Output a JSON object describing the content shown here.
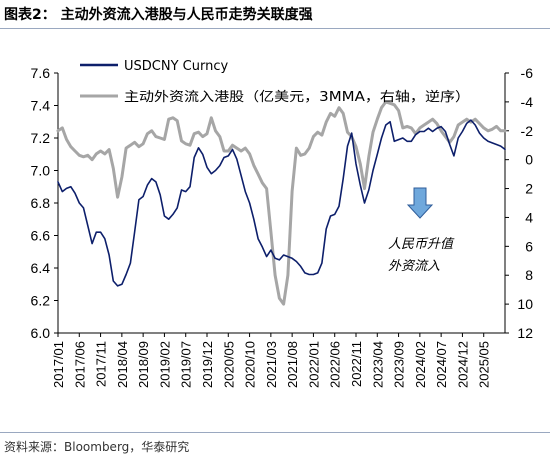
{
  "header": {
    "title": "图表2：   主动外资流入港股与人民币走势关联度强"
  },
  "footer": {
    "source": "资料来源：Bloomberg，华泰研究"
  },
  "colors": {
    "usdcny": "#0d1f6b",
    "flow": "#a6a6a6",
    "arrow": "#6fa8dc",
    "arrow_stroke": "#2f5d9a",
    "rule": "#9aa8c0"
  },
  "chart_data": {
    "type": "line",
    "title": "主动外资流入港股与人民币走势关联度强",
    "x_labels": [
      "2017/01",
      "2017/06",
      "2017/11",
      "2018/04",
      "2018/09",
      "2019/02",
      "2019/07",
      "2019/12",
      "2020/05",
      "2020/10",
      "2021/03",
      "2021/08",
      "2022/01",
      "2022/06",
      "2022/11",
      "2023/04",
      "2023/09",
      "2024/02",
      "2024/07",
      "2024/12",
      "2025/05"
    ],
    "x_range_months": [
      0,
      105
    ],
    "y_left": {
      "range": [
        6.0,
        7.6
      ],
      "ticks": [
        "6.0",
        "6.2",
        "6.4",
        "6.6",
        "6.8",
        "7.0",
        "7.2",
        "7.4",
        "7.6"
      ]
    },
    "y_right": {
      "range": [
        -6,
        12
      ],
      "inverted": true,
      "ticks": [
        "-6",
        "-4",
        "-2",
        "0",
        "2",
        "4",
        "6",
        "8",
        "10",
        "12"
      ]
    },
    "legend": {
      "placement": "top-left",
      "entries": [
        "USDCNY Curncy",
        "主动外资流入港股（亿美元，3MMA，右轴，逆序）"
      ]
    },
    "annotation": {
      "lines": [
        "人民币升值",
        "外资流入"
      ],
      "arrow": "down"
    },
    "series": [
      {
        "name": "USDCNY Curncy",
        "axis": "left",
        "points": [
          [
            0,
            6.93
          ],
          [
            1,
            6.87
          ],
          [
            2,
            6.89
          ],
          [
            3,
            6.9
          ],
          [
            4,
            6.86
          ],
          [
            5,
            6.8
          ],
          [
            6,
            6.77
          ],
          [
            7,
            6.66
          ],
          [
            8,
            6.55
          ],
          [
            9,
            6.62
          ],
          [
            10,
            6.62
          ],
          [
            11,
            6.58
          ],
          [
            12,
            6.48
          ],
          [
            13,
            6.32
          ],
          [
            14,
            6.29
          ],
          [
            15,
            6.3
          ],
          [
            16,
            6.36
          ],
          [
            17,
            6.43
          ],
          [
            18,
            6.62
          ],
          [
            19,
            6.82
          ],
          [
            20,
            6.84
          ],
          [
            21,
            6.91
          ],
          [
            22,
            6.95
          ],
          [
            23,
            6.93
          ],
          [
            24,
            6.85
          ],
          [
            25,
            6.72
          ],
          [
            26,
            6.7
          ],
          [
            27,
            6.73
          ],
          [
            28,
            6.77
          ],
          [
            29,
            6.88
          ],
          [
            30,
            6.87
          ],
          [
            31,
            6.9
          ],
          [
            32,
            7.08
          ],
          [
            33,
            7.14
          ],
          [
            34,
            7.1
          ],
          [
            35,
            7.02
          ],
          [
            36,
            6.98
          ],
          [
            37,
            7.0
          ],
          [
            38,
            7.03
          ],
          [
            39,
            7.08
          ],
          [
            40,
            7.09
          ],
          [
            41,
            7.13
          ],
          [
            42,
            7.07
          ],
          [
            43,
            6.97
          ],
          [
            44,
            6.87
          ],
          [
            45,
            6.8
          ],
          [
            46,
            6.7
          ],
          [
            47,
            6.58
          ],
          [
            48,
            6.53
          ],
          [
            49,
            6.47
          ],
          [
            50,
            6.51
          ],
          [
            51,
            6.46
          ],
          [
            52,
            6.45
          ],
          [
            53,
            6.48
          ],
          [
            54,
            6.47
          ],
          [
            55,
            6.46
          ],
          [
            56,
            6.44
          ],
          [
            57,
            6.41
          ],
          [
            58,
            6.37
          ],
          [
            59,
            6.36
          ],
          [
            60,
            6.36
          ],
          [
            61,
            6.37
          ],
          [
            62,
            6.43
          ],
          [
            63,
            6.64
          ],
          [
            64,
            6.72
          ],
          [
            65,
            6.73
          ],
          [
            66,
            6.78
          ],
          [
            67,
            6.95
          ],
          [
            68,
            7.15
          ],
          [
            69,
            7.23
          ],
          [
            70,
            7.04
          ],
          [
            71,
            6.91
          ],
          [
            72,
            6.8
          ],
          [
            73,
            6.88
          ],
          [
            74,
            7.0
          ],
          [
            75,
            7.1
          ],
          [
            76,
            7.2
          ],
          [
            77,
            7.28
          ],
          [
            78,
            7.3
          ],
          [
            79,
            7.18
          ],
          [
            80,
            7.19
          ],
          [
            81,
            7.2
          ],
          [
            82,
            7.18
          ],
          [
            83,
            7.18
          ],
          [
            84,
            7.22
          ],
          [
            85,
            7.24
          ],
          [
            86,
            7.24
          ],
          [
            87,
            7.26
          ],
          [
            88,
            7.24
          ],
          [
            89,
            7.26
          ],
          [
            90,
            7.27
          ],
          [
            91,
            7.24
          ],
          [
            92,
            7.16
          ],
          [
            93,
            7.09
          ],
          [
            94,
            7.2
          ],
          [
            95,
            7.24
          ],
          [
            96,
            7.29
          ],
          [
            97,
            7.31
          ],
          [
            98,
            7.28
          ],
          [
            99,
            7.23
          ],
          [
            100,
            7.2
          ],
          [
            101,
            7.18
          ],
          [
            102,
            7.17
          ],
          [
            103,
            7.16
          ],
          [
            104,
            7.15
          ],
          [
            105,
            7.13
          ]
        ]
      },
      {
        "name": "主动外资流入港股（亿美元，3MMA，右轴，逆序）",
        "axis": "right",
        "points": [
          [
            0,
            -2.0
          ],
          [
            1,
            -2.2
          ],
          [
            2,
            -1.4
          ],
          [
            3,
            -0.9
          ],
          [
            4,
            -0.6
          ],
          [
            5,
            -0.3
          ],
          [
            6,
            -0.2
          ],
          [
            7,
            -0.3
          ],
          [
            8,
            0.0
          ],
          [
            9,
            -0.4
          ],
          [
            10,
            -0.6
          ],
          [
            11,
            -0.4
          ],
          [
            12,
            -0.7
          ],
          [
            13,
            0.6
          ],
          [
            14,
            2.6
          ],
          [
            15,
            1.2
          ],
          [
            16,
            -0.8
          ],
          [
            17,
            -1.0
          ],
          [
            18,
            -1.2
          ],
          [
            19,
            -0.9
          ],
          [
            20,
            -1.1
          ],
          [
            21,
            -1.8
          ],
          [
            22,
            -2.0
          ],
          [
            23,
            -1.6
          ],
          [
            24,
            -1.5
          ],
          [
            25,
            -1.4
          ],
          [
            26,
            -2.8
          ],
          [
            27,
            -2.9
          ],
          [
            28,
            -2.7
          ],
          [
            29,
            -1.3
          ],
          [
            30,
            -1.1
          ],
          [
            31,
            -1.0
          ],
          [
            32,
            -1.8
          ],
          [
            33,
            -1.9
          ],
          [
            34,
            -1.6
          ],
          [
            35,
            -1.8
          ],
          [
            36,
            -2.9
          ],
          [
            37,
            -2.0
          ],
          [
            38,
            -1.6
          ],
          [
            39,
            -0.6
          ],
          [
            40,
            -0.6
          ],
          [
            41,
            -1.0
          ],
          [
            42,
            -0.8
          ],
          [
            43,
            -0.6
          ],
          [
            44,
            -0.8
          ],
          [
            45,
            -0.4
          ],
          [
            46,
            0.4
          ],
          [
            47,
            1.0
          ],
          [
            48,
            1.6
          ],
          [
            49,
            2.0
          ],
          [
            50,
            5.0
          ],
          [
            51,
            8.0
          ],
          [
            52,
            9.6
          ],
          [
            53,
            10.0
          ],
          [
            54,
            8.0
          ],
          [
            55,
            2.2
          ],
          [
            56,
            -0.8
          ],
          [
            57,
            -0.3
          ],
          [
            58,
            -0.4
          ],
          [
            59,
            -0.8
          ],
          [
            60,
            -1.6
          ],
          [
            61,
            -1.9
          ],
          [
            62,
            -1.7
          ],
          [
            63,
            -2.6
          ],
          [
            64,
            -3.2
          ],
          [
            65,
            -3.0
          ],
          [
            66,
            -3.6
          ],
          [
            67,
            -3.2
          ],
          [
            68,
            -1.9
          ],
          [
            69,
            -1.6
          ],
          [
            70,
            -0.9
          ],
          [
            71,
            0.3
          ],
          [
            72,
            2.0
          ],
          [
            73,
            -0.2
          ],
          [
            74,
            -1.9
          ],
          [
            75,
            -2.8
          ],
          [
            76,
            -3.6
          ],
          [
            77,
            -4.0
          ],
          [
            78,
            -3.9
          ],
          [
            79,
            -3.8
          ],
          [
            80,
            -3.4
          ],
          [
            81,
            -2.2
          ],
          [
            82,
            -2.3
          ],
          [
            83,
            -2.2
          ],
          [
            84,
            -1.8
          ],
          [
            85,
            -2.2
          ],
          [
            86,
            -2.4
          ],
          [
            87,
            -2.6
          ],
          [
            88,
            -2.8
          ],
          [
            89,
            -2.5
          ],
          [
            90,
            -2.0
          ],
          [
            91,
            -1.6
          ],
          [
            92,
            -1.2
          ],
          [
            93,
            -1.6
          ],
          [
            94,
            -2.4
          ],
          [
            95,
            -2.6
          ],
          [
            96,
            -2.8
          ],
          [
            97,
            -2.6
          ],
          [
            98,
            -2.8
          ],
          [
            99,
            -2.5
          ],
          [
            100,
            -2.2
          ],
          [
            101,
            -2.0
          ],
          [
            102,
            -2.1
          ],
          [
            103,
            -2.3
          ],
          [
            104,
            -2.0
          ],
          [
            105,
            -2.0
          ]
        ]
      }
    ]
  }
}
